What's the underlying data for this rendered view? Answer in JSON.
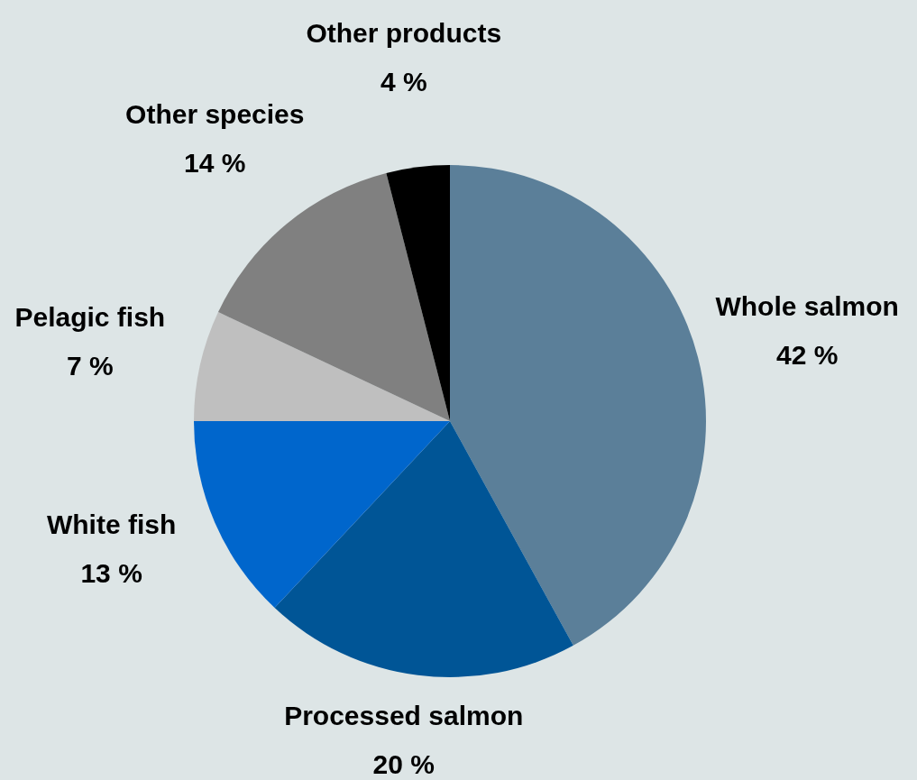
{
  "chart_data": {
    "type": "pie",
    "categories": [
      "Whole salmon",
      "Processed salmon",
      "White fish",
      "Pelagic fish",
      "Other species",
      "Other products"
    ],
    "values": [
      42,
      20,
      13,
      7,
      14,
      4
    ],
    "colors": [
      "#5b7f99",
      "#005596",
      "#0066cc",
      "#bfbfbf",
      "#808080",
      "#000000"
    ],
    "value_labels": [
      "42 %",
      "20 %",
      "13 %",
      "7 %",
      "14 %",
      "4 %"
    ]
  }
}
